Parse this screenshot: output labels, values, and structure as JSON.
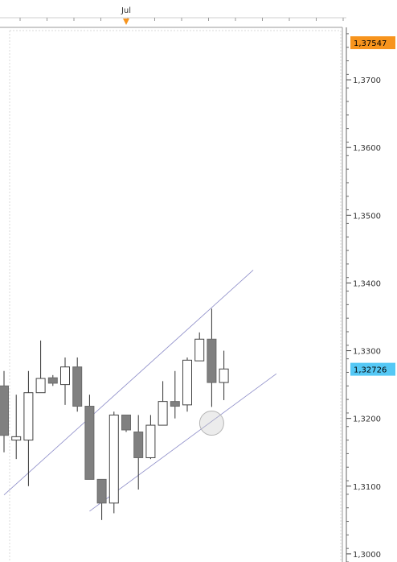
{
  "chart_data": {
    "type": "candlestick",
    "title": "",
    "x_tick_labels": [
      "Jul"
    ],
    "y_ticks": [
      1.37,
      1.36,
      1.35,
      1.34,
      1.33,
      1.32,
      1.31,
      1.3
    ],
    "y_tick_labels": [
      "1,3700",
      "1,3600",
      "1,3500",
      "1,3400",
      "1,3300",
      "1,3200",
      "1,3100",
      "1,3000"
    ],
    "ylim": [
      1.2988,
      1.3775
    ],
    "grid": false,
    "price_tags": {
      "high_label": "1,37547",
      "high_value": 1.37547,
      "high_color": "#f7941d",
      "current_label": "1,32726",
      "current_value": 1.32726,
      "current_color": "#55c8f5"
    },
    "colors": {
      "bearish_fill": "#808080",
      "bullish_fill": "#ffffff",
      "wick": "#333333",
      "channel": "#8c8cc8",
      "accent": "#f7941d"
    },
    "candles": [
      {
        "open": 1.3248,
        "high": 1.327,
        "low": 1.315,
        "close": 1.3175
      },
      {
        "open": 1.3168,
        "high": 1.3235,
        "low": 1.314,
        "close": 1.3173
      },
      {
        "open": 1.3168,
        "high": 1.327,
        "low": 1.31,
        "close": 1.3238
      },
      {
        "open": 1.3238,
        "high": 1.3315,
        "low": 1.3238,
        "close": 1.3259
      },
      {
        "open": 1.326,
        "high": 1.3264,
        "low": 1.3248,
        "close": 1.3252
      },
      {
        "open": 1.325,
        "high": 1.329,
        "low": 1.322,
        "close": 1.3276
      },
      {
        "open": 1.3276,
        "high": 1.329,
        "low": 1.321,
        "close": 1.3218
      },
      {
        "open": 1.3218,
        "high": 1.3235,
        "low": 1.311,
        "close": 1.311
      },
      {
        "open": 1.311,
        "high": 1.311,
        "low": 1.305,
        "close": 1.3075
      },
      {
        "open": 1.3075,
        "high": 1.321,
        "low": 1.306,
        "close": 1.3205
      },
      {
        "open": 1.3205,
        "high": 1.3205,
        "low": 1.318,
        "close": 1.3183
      },
      {
        "open": 1.318,
        "high": 1.3205,
        "low": 1.3095,
        "close": 1.3142
      },
      {
        "open": 1.3142,
        "high": 1.3205,
        "low": 1.314,
        "close": 1.319
      },
      {
        "open": 1.319,
        "high": 1.3255,
        "low": 1.319,
        "close": 1.3225
      },
      {
        "open": 1.3225,
        "high": 1.327,
        "low": 1.32,
        "close": 1.3218
      },
      {
        "open": 1.322,
        "high": 1.329,
        "low": 1.321,
        "close": 1.3286
      },
      {
        "open": 1.3285,
        "high": 1.3327,
        "low": 1.3285,
        "close": 1.3317
      },
      {
        "open": 1.3317,
        "high": 1.3362,
        "low": 1.3217,
        "close": 1.3253
      },
      {
        "open": 1.3253,
        "high": 1.33,
        "low": 1.3227,
        "close": 1.3273
      }
    ],
    "channel": {
      "upper": {
        "from": [
          0,
          1.3087
        ],
        "to": [
          20.4,
          1.3419
        ]
      },
      "lower": {
        "from": [
          7.0,
          1.3063
        ],
        "to": [
          22.3,
          1.3266
        ]
      }
    },
    "marker": {
      "index": 17,
      "price": 1.3193
    }
  }
}
